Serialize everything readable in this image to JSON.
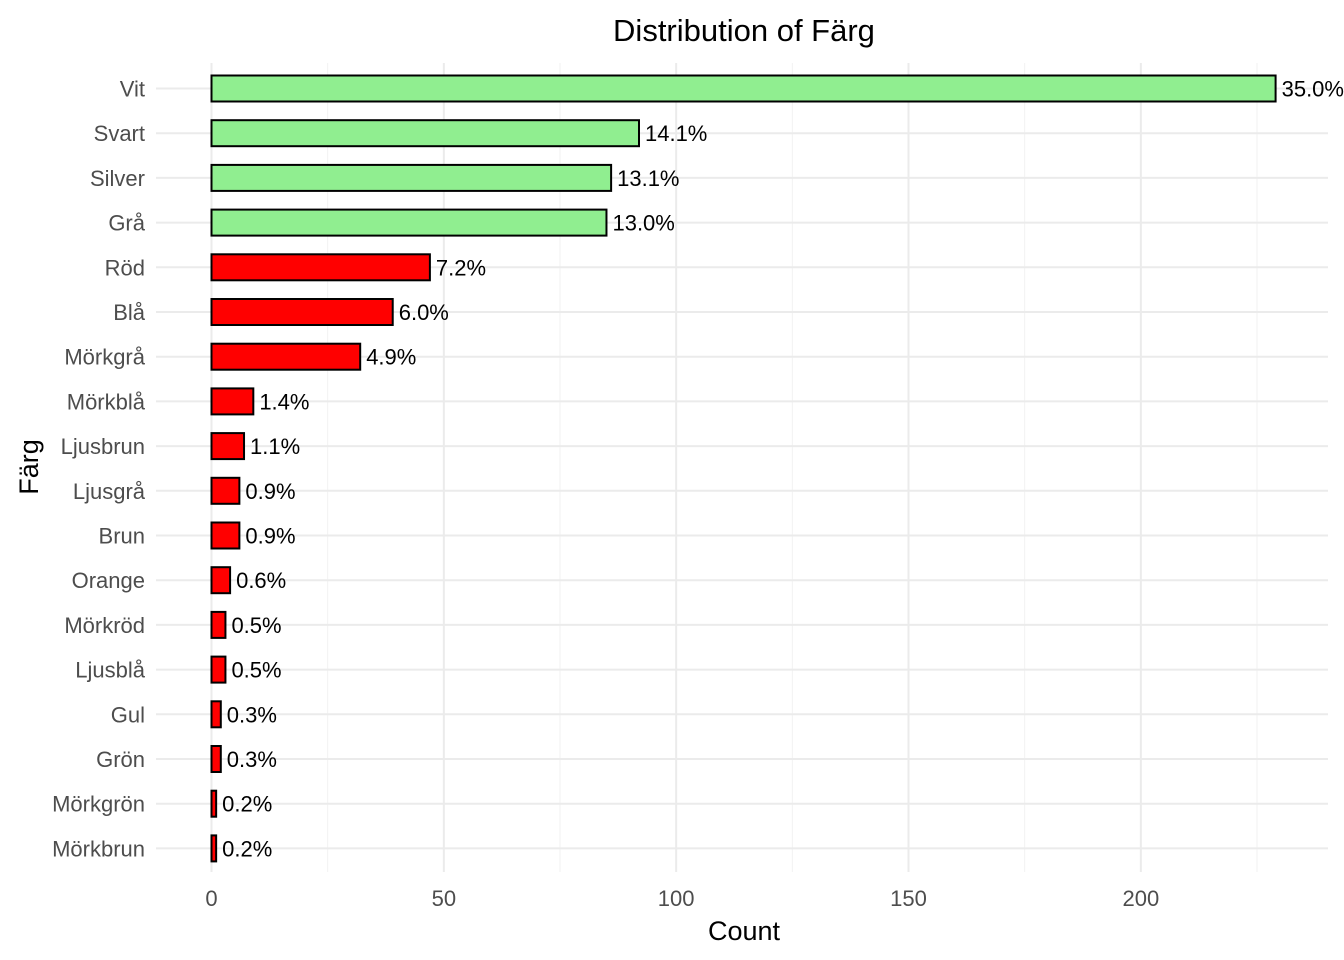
{
  "chart_data": {
    "type": "bar",
    "orientation": "horizontal",
    "title": "Distribution of  Färg",
    "xlabel": "Count",
    "ylabel": "Färg",
    "xlim": [
      -12,
      240
    ],
    "xticks": [
      0,
      50,
      100,
      150,
      200
    ],
    "grid": true,
    "categories": [
      "Vit",
      "Svart",
      "Silver",
      "Grå",
      "Röd",
      "Blå",
      "Mörkgrå",
      "Mörkblå",
      "Ljusbrun",
      "Ljusgrå",
      "Brun",
      "Orange",
      "Mörkröd",
      "Ljusblå",
      "Gul",
      "Grön",
      "Mörkgrön",
      "Mörkbrun"
    ],
    "values": [
      229,
      92,
      86,
      85,
      47,
      39,
      32,
      9,
      7,
      6,
      6,
      4,
      3,
      3,
      2,
      2,
      1,
      1
    ],
    "labels": [
      "35.0%",
      "14.1%",
      "13.1%",
      "13.0%",
      "7.2%",
      "6.0%",
      "4.9%",
      "1.4%",
      "1.1%",
      "0.9%",
      "0.9%",
      "0.6%",
      "0.5%",
      "0.5%",
      "0.3%",
      "0.3%",
      "0.2%",
      "0.2%"
    ],
    "bar_colors": [
      "#90ee90",
      "#90ee90",
      "#90ee90",
      "#90ee90",
      "#ff0000",
      "#ff0000",
      "#ff0000",
      "#ff0000",
      "#ff0000",
      "#ff0000",
      "#ff0000",
      "#ff0000",
      "#ff0000",
      "#ff0000",
      "#ff0000",
      "#ff0000",
      "#ff0000",
      "#ff0000"
    ],
    "bar_outline_color": "#000000"
  }
}
